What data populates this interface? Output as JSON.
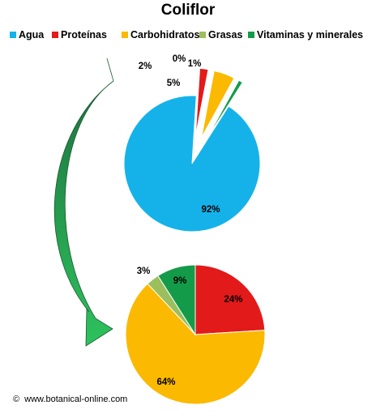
{
  "colors": {
    "Agua": "#15b2ea",
    "Proteínas": "#e21a1a",
    "Carbohidratos": "#fbb901",
    "Grasas": "#9bbf5d",
    "Vitaminas y minerales": "#149b49",
    "arrow_top": "#1d6b3c",
    "arrow_bottom": "#2dc25d"
  },
  "chart_data": [
    {
      "type": "pie",
      "title": "Coliflor",
      "legend_position": "top",
      "categories": [
        "Agua",
        "Proteínas",
        "Carbohidratos",
        "Grasas",
        "Vitaminas y minerales"
      ],
      "values": [
        92,
        2,
        5,
        0,
        1
      ],
      "labels": [
        "92%",
        "2%",
        "5%",
        "0%",
        "1%"
      ],
      "exploded": [
        "Proteínas",
        "Carbohidratos",
        "Grasas",
        "Vitaminas y minerales"
      ]
    },
    {
      "type": "pie",
      "categories": [
        "Proteínas",
        "Carbohidratos",
        "Grasas",
        "Vitaminas y minerales"
      ],
      "values": [
        24,
        64,
        3,
        9
      ],
      "labels": [
        "24%",
        "64%",
        "3%",
        "9%"
      ]
    }
  ],
  "credit": {
    "symbol": "©",
    "text": "www.botanical-online.com"
  }
}
